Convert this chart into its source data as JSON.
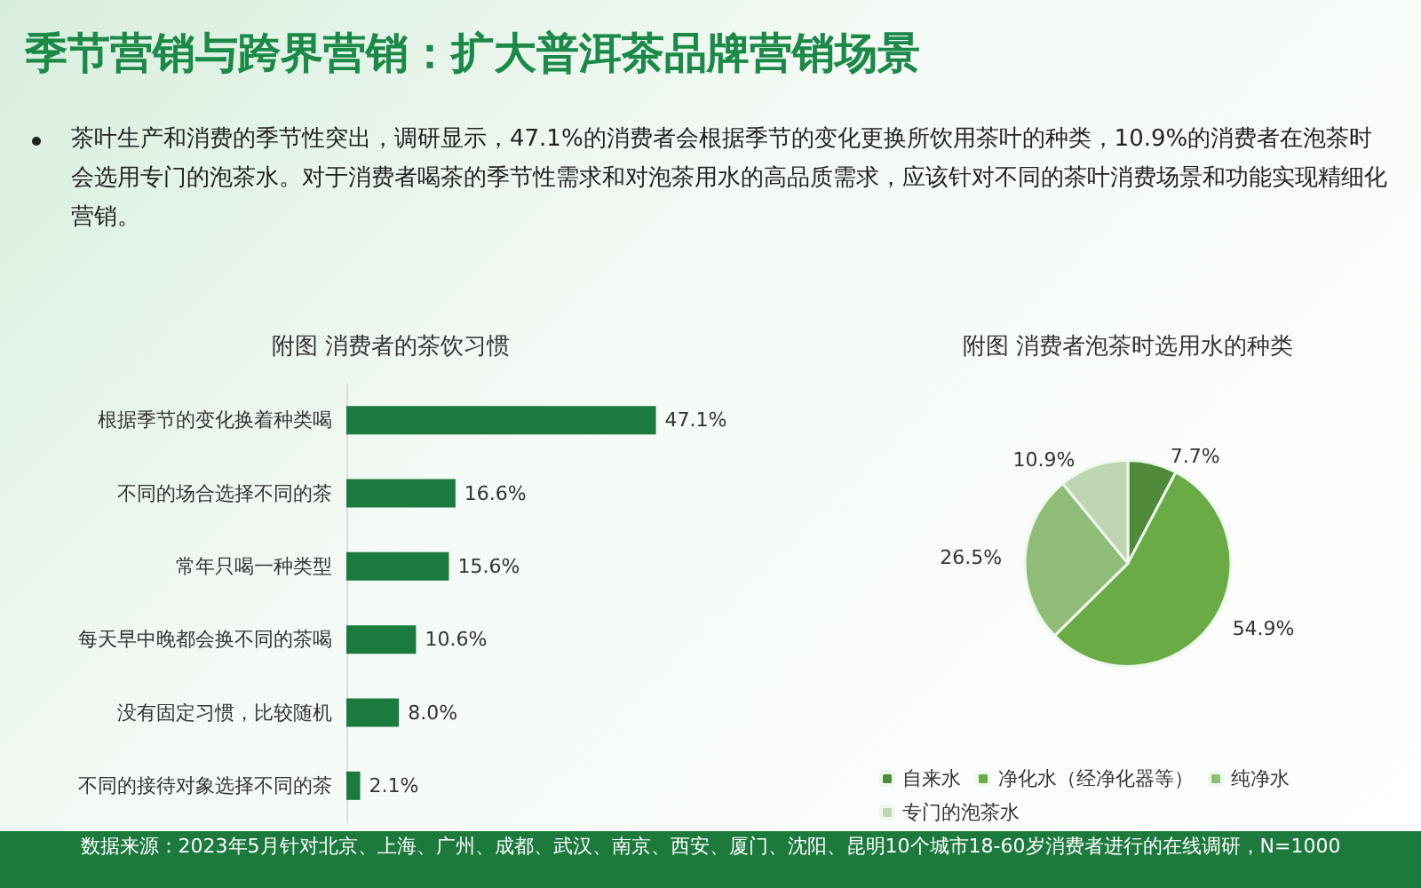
{
  "chart_data": [
    {
      "type": "bar",
      "orientation": "horizontal",
      "title": "附图 消费者的茶饮习惯",
      "annotations": [
        "季节营销与跨界营销：扩大普洱茶品牌营销场景",
        "茶叶生产和消费的季节性突出，调研显示，47.1%的消费者会根据季节的变化更换所饮用茶叶的种类，10.9%的消费者在泡茶时会选用专门的泡茶水。对于消费者喝茶的季节性需求和对泡茶用水的高品质需求，应该针对不同的茶叶消费场景和功能实现精细化营销。",
        "数据来源：2023年5月针对北京、上海、广州、成都、武汉、南京、西安、厦门、沈阳、昆明10个城市18-60岁消费者进行的在线调研，N=1000"
      ],
      "categories": [
        "根据季节的变化换着种类喝",
        "不同的场合选择不同的茶",
        "常年只喝一种类型",
        "每天早中晚都会换不同的茶喝",
        "没有固定习惯，比较随机",
        "不同的接待对象选择不同的茶"
      ],
      "values": [
        47.1,
        16.6,
        15.6,
        10.6,
        8.0,
        2.1
      ],
      "value_labels": [
        "47.1%",
        "16.6%",
        "15.6%",
        "10.6%",
        "8.0%",
        "2.1%"
      ],
      "color": "#1b7a3e",
      "legend": false
    },
    {
      "type": "pie",
      "title": "附图 消费者泡茶时选用水的种类",
      "categories": [
        "自来水",
        "净化水（经净化器等）",
        "纯净水",
        "专门的泡茶水"
      ],
      "values": [
        7.7,
        54.9,
        26.5,
        10.9
      ],
      "value_labels": [
        "7.7%",
        "54.9%",
        "26.5%",
        "10.9%"
      ],
      "colors": [
        "#4f8a38",
        "#6aab45",
        "#8fbd78",
        "#bdd6b1"
      ],
      "legend": "bottom"
    }
  ]
}
